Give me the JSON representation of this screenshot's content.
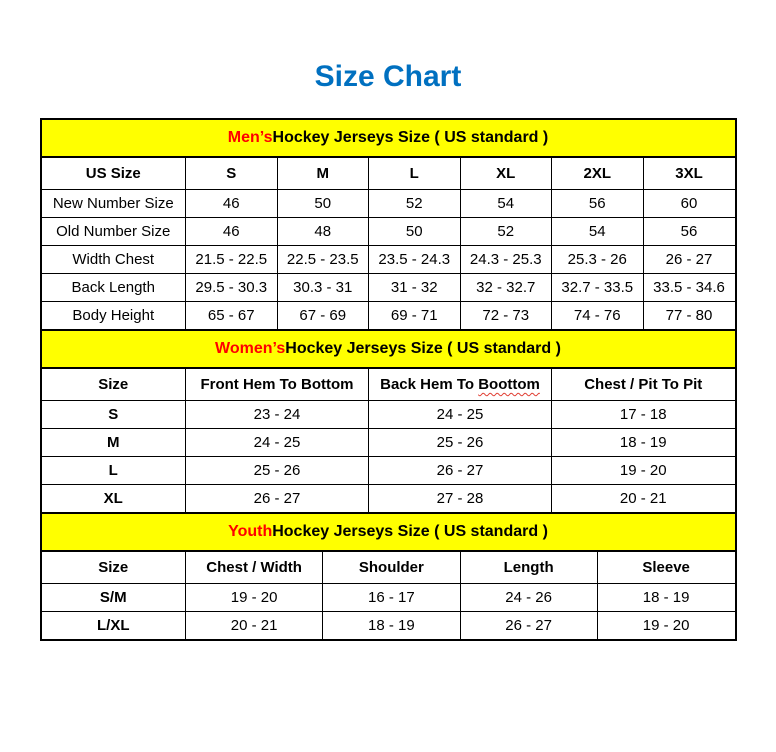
{
  "page_title": "Size Chart",
  "colors": {
    "title_blue": "#0070C0",
    "banner_yellow": "#FFFF00",
    "highlight_red": "#FF0000",
    "spellcheck_squiggle_red": "#E03C31",
    "border_black": "#000000"
  },
  "sections": [
    {
      "id": "mens",
      "banner": {
        "highlight": "Men’s",
        "rest": " Hockey Jerseys Size ( US standard )"
      },
      "columns": [
        "US Size",
        "S",
        "M",
        "L",
        "XL",
        "2XL",
        "3XL"
      ],
      "rows": [
        {
          "label": "New Number Size",
          "values": [
            "46",
            "50",
            "52",
            "54",
            "56",
            "60"
          ]
        },
        {
          "label": "Old Number Size",
          "values": [
            "46",
            "48",
            "50",
            "52",
            "54",
            "56"
          ]
        },
        {
          "label": "Width Chest",
          "values": [
            "21.5 - 22.5",
            "22.5 - 23.5",
            "23.5 - 24.3",
            "24.3 - 25.3",
            "25.3 - 26",
            "26 - 27"
          ]
        },
        {
          "label": "Back Length",
          "values": [
            "29.5 - 30.3",
            "30.3 - 31",
            "31 - 32",
            "32 - 32.7",
            "32.7 - 33.5",
            "33.5 - 34.6"
          ]
        },
        {
          "label": "Body Height",
          "values": [
            "65 - 67",
            "67 - 69",
            "69 - 71",
            "72 - 73",
            "74 - 76",
            "77 - 80"
          ]
        }
      ]
    },
    {
      "id": "womens",
      "banner": {
        "highlight": "Women’s",
        "rest": " Hockey Jerseys Size ( US standard )"
      },
      "columns": [
        "Size",
        "Front Hem To Bottom",
        "Back Hem To Boottom",
        "Chest / Pit To Pit"
      ],
      "spellcheck_flag": {
        "column_index": 2,
        "word": "Boottom"
      },
      "rows": [
        {
          "label": "S",
          "values": [
            "23 - 24",
            "24 - 25",
            "17 - 18"
          ]
        },
        {
          "label": "M",
          "values": [
            "24 - 25",
            "25 - 26",
            "18 - 19"
          ]
        },
        {
          "label": "L",
          "values": [
            "25 - 26",
            "26 - 27",
            "19 - 20"
          ]
        },
        {
          "label": "XL",
          "values": [
            "26 - 27",
            "27 - 28",
            "20 - 21"
          ]
        }
      ]
    },
    {
      "id": "youth",
      "banner": {
        "highlight": "Youth",
        "rest": " Hockey Jerseys Size ( US standard )"
      },
      "columns": [
        "Size",
        "Chest / Width",
        "Shoulder",
        "Length",
        "Sleeve"
      ],
      "rows": [
        {
          "label": "S/M",
          "values": [
            "19 - 20",
            "16 - 17",
            "24 - 26",
            "18 - 19"
          ]
        },
        {
          "label": "L/XL",
          "values": [
            "20 - 21",
            "18 - 19",
            "26 - 27",
            "19 - 20"
          ]
        }
      ]
    }
  ]
}
